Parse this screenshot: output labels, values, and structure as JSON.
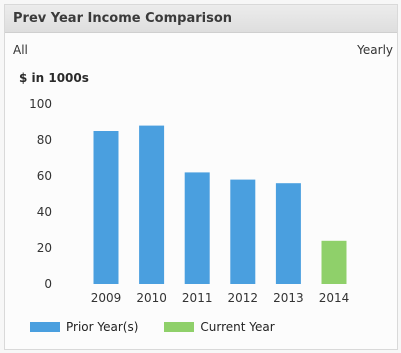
{
  "header": {
    "title": "Prev Year Income Comparison"
  },
  "filters": {
    "left": "All",
    "right": "Yearly"
  },
  "units_label": "$ in 1000s",
  "colors": {
    "prior": "#4a9fdf",
    "current": "#8fd06a"
  },
  "chart_data": {
    "type": "bar",
    "title": "Prev Year Income Comparison",
    "ylabel": "$ in 1000s",
    "xlabel": "",
    "categories": [
      "2009",
      "2010",
      "2011",
      "2012",
      "2013",
      "2014"
    ],
    "values": [
      85,
      88,
      62,
      58,
      56,
      24
    ],
    "series_of_each": [
      "Prior Year(s)",
      "Prior Year(s)",
      "Prior Year(s)",
      "Prior Year(s)",
      "Prior Year(s)",
      "Current Year"
    ],
    "ylim": [
      0,
      100
    ],
    "yticks": [
      "0",
      "20",
      "40",
      "60",
      "80",
      "100"
    ],
    "grid": false,
    "legend": {
      "placement": "bottom",
      "entries": [
        {
          "name": "Prior Year(s)",
          "color": "#4a9fdf"
        },
        {
          "name": "Current Year",
          "color": "#8fd06a"
        }
      ]
    }
  }
}
